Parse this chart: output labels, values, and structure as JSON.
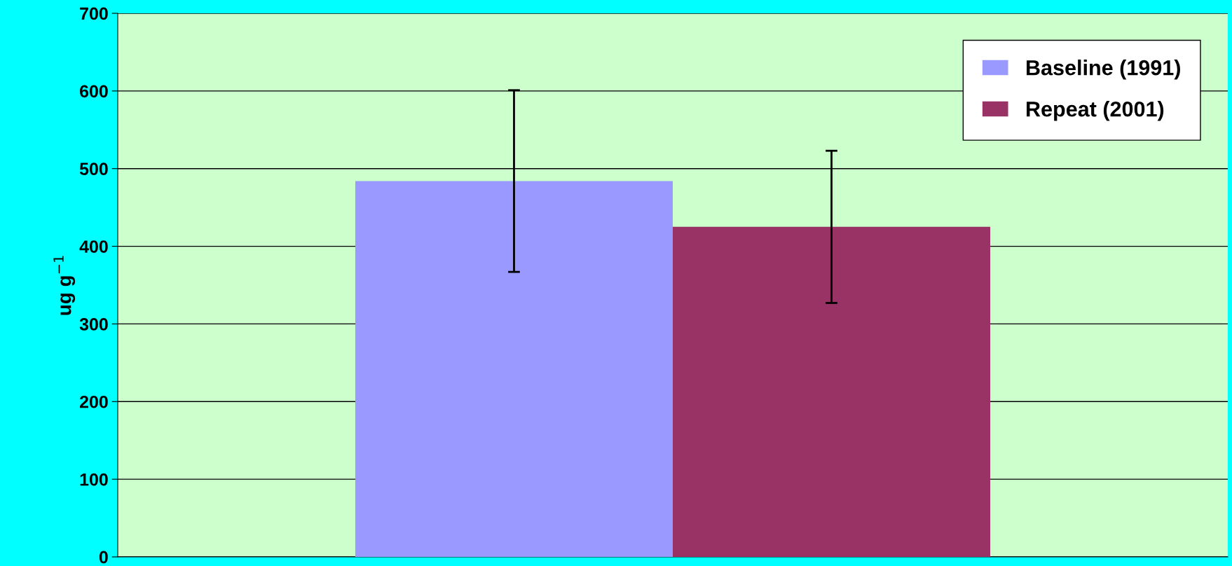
{
  "chart_data": {
    "type": "bar",
    "ylabel": "ug g$^{−1}$",
    "categories": [
      null
    ],
    "series": [
      {
        "name": "Baseline (1991)",
        "color": "#9999ff",
        "values": [
          484
        ],
        "errors": [
          117
        ]
      },
      {
        "name": "Repeat (2001)",
        "color": "#993366",
        "values": [
          425
        ],
        "errors": [
          98
        ]
      }
    ],
    "ylim": [
      0,
      700
    ],
    "yticks": [
      0,
      100,
      200,
      300,
      400,
      500,
      600,
      700
    ],
    "grid": "y",
    "legend": "top right",
    "tick_labels": "y"
  }
}
